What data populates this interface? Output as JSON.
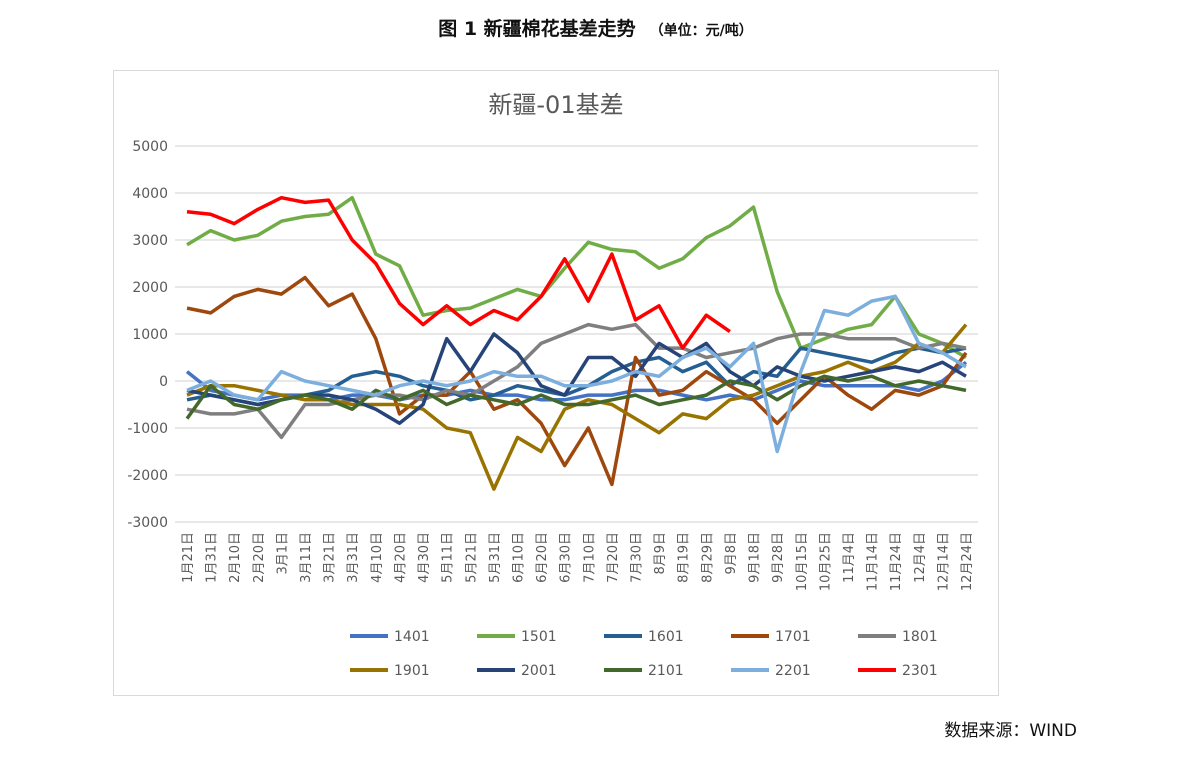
{
  "figure": {
    "title": "图 1  新疆棉花基差走势",
    "unit": "（单位：元/吨）",
    "source": "数据来源：WIND"
  },
  "chart_data": {
    "type": "line",
    "title": "新疆-01基差",
    "ylim": [
      -3000,
      5000
    ],
    "yticks": [
      5000,
      4000,
      3000,
      2000,
      1000,
      0,
      -1000,
      -2000,
      -3000
    ],
    "grid": true,
    "legend_position": "bottom",
    "categories": [
      "1月21日",
      "1月31日",
      "2月10日",
      "2月20日",
      "3月1日",
      "3月11日",
      "3月21日",
      "3月31日",
      "4月10日",
      "4月20日",
      "4月30日",
      "5月11日",
      "5月21日",
      "5月31日",
      "6月10日",
      "6月20日",
      "6月30日",
      "7月10日",
      "7月20日",
      "7月30日",
      "8月9日",
      "8月19日",
      "8月29日",
      "9月8日",
      "9月18日",
      "9月28日",
      "10月15日",
      "10月25日",
      "11月4日",
      "11月14日",
      "11月24日",
      "12月4日",
      "12月14日",
      "12月24日"
    ],
    "series": [
      {
        "name": "1401",
        "color": "#4472C4",
        "values": [
          200,
          -200,
          -300,
          -400,
          -300,
          -300,
          -400,
          -300,
          -300,
          -400,
          -300,
          -300,
          -200,
          -300,
          -300,
          -400,
          -400,
          -300,
          -300,
          -200,
          -200,
          -300,
          -400,
          -300,
          -400,
          -200,
          0,
          -100,
          -100,
          -100,
          -100,
          -200,
          0,
          400
        ]
      },
      {
        "name": "1501",
        "color": "#70AD47",
        "values": [
          2900,
          3200,
          3000,
          3100,
          3400,
          3500,
          3550,
          3900,
          2700,
          2450,
          1400,
          1500,
          1550,
          1750,
          1950,
          1800,
          2400,
          2950,
          2800,
          2750,
          2400,
          2600,
          3050,
          3300,
          3700,
          1900,
          700,
          900,
          1100,
          1200,
          1800,
          1000,
          800,
          500
        ]
      },
      {
        "name": "1601",
        "color": "#255E91",
        "values": [
          -400,
          -300,
          -400,
          -500,
          -400,
          -300,
          -200,
          100,
          200,
          100,
          -100,
          -200,
          -400,
          -300,
          -100,
          -200,
          -300,
          -100,
          200,
          400,
          500,
          200,
          400,
          -100,
          200,
          100,
          700,
          600,
          500,
          400,
          600,
          700,
          600,
          700
        ]
      },
      {
        "name": "1701",
        "color": "#9E480E",
        "values": [
          1550,
          1450,
          1800,
          1950,
          1850,
          2200,
          1600,
          1850,
          900,
          -700,
          -300,
          -300,
          200,
          -600,
          -400,
          -900,
          -1800,
          -1000,
          -2200,
          500,
          -300,
          -200,
          200,
          -100,
          -400,
          -900,
          -400,
          100,
          -300,
          -600,
          -200,
          -300,
          -100,
          600
        ]
      },
      {
        "name": "1801",
        "color": "#7F7F7F",
        "values": [
          -600,
          -700,
          -700,
          -600,
          -1200,
          -500,
          -500,
          -400,
          -300,
          -300,
          -400,
          -200,
          -300,
          0,
          300,
          800,
          1000,
          1200,
          1100,
          1200,
          700,
          700,
          500,
          600,
          700,
          900,
          1000,
          1000,
          900,
          900,
          900,
          700,
          800,
          700
        ]
      },
      {
        "name": "1901",
        "color": "#997300",
        "values": [
          -300,
          -100,
          -100,
          -200,
          -300,
          -400,
          -400,
          -500,
          -500,
          -500,
          -600,
          -1000,
          -1100,
          -2300,
          -1200,
          -1500,
          -600,
          -400,
          -500,
          -800,
          -1100,
          -700,
          -800,
          -400,
          -300,
          -100,
          100,
          200,
          400,
          200,
          400,
          800,
          600,
          1200
        ]
      },
      {
        "name": "2001",
        "color": "#264478",
        "values": [
          -200,
          -300,
          -400,
          -500,
          -400,
          -300,
          -300,
          -400,
          -600,
          -900,
          -500,
          900,
          200,
          1000,
          600,
          -100,
          -300,
          500,
          500,
          100,
          800,
          500,
          800,
          200,
          -100,
          300,
          100,
          0,
          100,
          200,
          300,
          200,
          400,
          100
        ]
      },
      {
        "name": "2101",
        "color": "#43682B",
        "values": [
          -800,
          -100,
          -500,
          -600,
          -400,
          -300,
          -400,
          -600,
          -200,
          -400,
          -200,
          -500,
          -300,
          -400,
          -500,
          -300,
          -500,
          -500,
          -400,
          -300,
          -500,
          -400,
          -300,
          0,
          -100,
          -400,
          -100,
          100,
          0,
          100,
          -100,
          0,
          -100,
          -200
        ]
      },
      {
        "name": "2201",
        "color": "#7CAFDD",
        "values": [
          -200,
          0,
          -300,
          -400,
          200,
          0,
          -100,
          -200,
          -300,
          -100,
          0,
          -100,
          0,
          200,
          100,
          100,
          -100,
          -100,
          0,
          200,
          100,
          500,
          700,
          300,
          800,
          -1500,
          200,
          1500,
          1400,
          1700,
          1800,
          800,
          600,
          300
        ]
      },
      {
        "name": "2301",
        "color": "#FF0000",
        "values": [
          3600,
          3550,
          3350,
          3650,
          3900,
          3800,
          3850,
          3000,
          2500,
          1650,
          1200,
          1600,
          1200,
          1500,
          1300,
          1800,
          2600,
          1700,
          2700,
          1300,
          1600,
          700,
          1400,
          1050,
          null,
          null,
          null,
          null,
          null,
          null,
          null,
          null,
          null,
          null
        ]
      }
    ]
  }
}
